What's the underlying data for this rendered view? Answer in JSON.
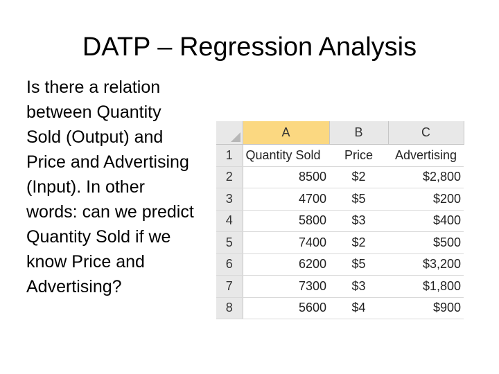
{
  "slide": {
    "title": "DATP – Regression Analysis",
    "body": "Is there a relation between Quantity Sold (Output) and Price and Advertising (Input). In other words: can we predict Quantity Sold if we know Price and Advertising?"
  },
  "spreadsheet": {
    "column_headers": [
      "A",
      "B",
      "C"
    ],
    "selected_column": "A",
    "row_numbers": [
      "1",
      "2",
      "3",
      "4",
      "5",
      "6",
      "7",
      "8"
    ],
    "header_row": [
      "Quantity Sold",
      "Price",
      "Advertising"
    ],
    "rows": [
      [
        "8500",
        "$2",
        "$2,800"
      ],
      [
        "4700",
        "$5",
        "$200"
      ],
      [
        "5800",
        "$3",
        "$400"
      ],
      [
        "7400",
        "$2",
        "$500"
      ],
      [
        "6200",
        "$5",
        "$3,200"
      ],
      [
        "7300",
        "$3",
        "$1,800"
      ],
      [
        "5600",
        "$4",
        "$900"
      ]
    ],
    "colors": {
      "selected_header": "#fbd881",
      "header_bg": "#e8e8e8",
      "gridline": "#d9d9d9"
    }
  }
}
